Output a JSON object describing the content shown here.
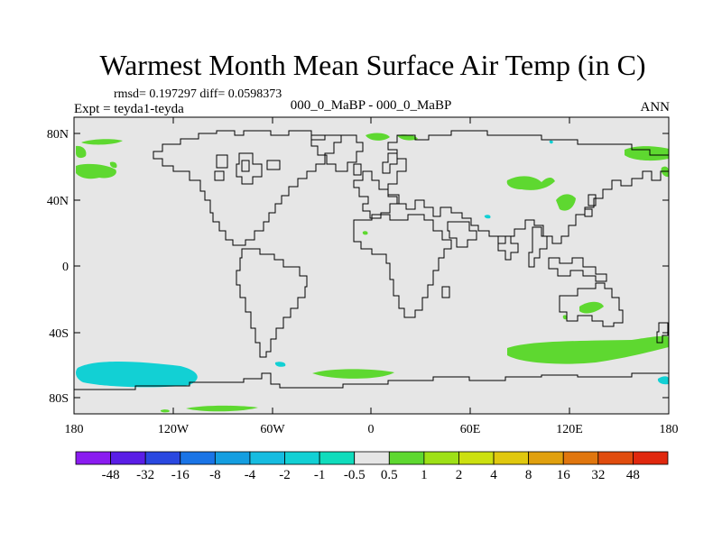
{
  "title": "Warmest Month Mean Surface Air Temp (in C)",
  "stats": "rmsd= 0.197297 diff= 0.0598373",
  "left_label": "Expt = teyda1-teyda",
  "center_label": "000_0_MaBP - 000_0_MaBP",
  "right_label": "ANN",
  "lat_ticks": [
    "80N",
    "40N",
    "0",
    "40S",
    "80S"
  ],
  "lon_ticks": [
    "180",
    "120W",
    "60W",
    "0",
    "60E",
    "120E",
    "180"
  ],
  "legend": {
    "labels": [
      "-48",
      "-32",
      "-16",
      "-8",
      "-4",
      "-2",
      "-1",
      "-0.5",
      "0.5",
      "1",
      "2",
      "4",
      "8",
      "16",
      "32",
      "48"
    ],
    "colors": [
      "#8a1cf0",
      "#5a1ee6",
      "#2a48e0",
      "#1a74e6",
      "#149ee0",
      "#16bce0",
      "#12d0d4",
      "#10dcbc",
      "#e6e6e6",
      "#5ed830",
      "#9ee016",
      "#cce010",
      "#e0c80e",
      "#e0a00e",
      "#e0760e",
      "#e04c0e",
      "#e0280e"
    ]
  },
  "colors": {
    "background": "#e6e6e6",
    "coast": "#000000",
    "positive": "#5ed830",
    "negative": "#12d0d4"
  }
}
